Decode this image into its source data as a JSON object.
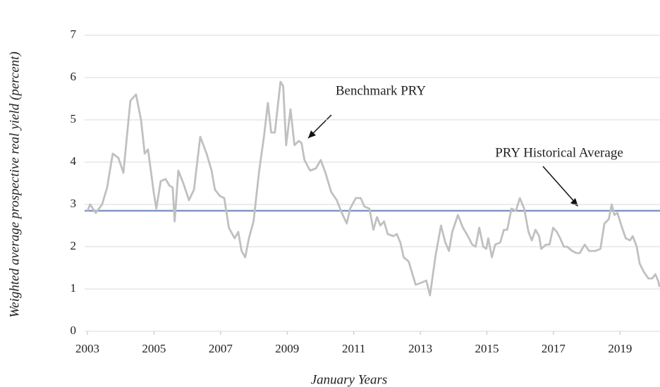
{
  "chart_data": {
    "type": "line",
    "x_label": "January Years",
    "y_label": "Weighted average prospective real yield (percent)",
    "xlim": [
      2003,
      2020.2
    ],
    "xticks": [
      2003,
      2005,
      2007,
      2009,
      2011,
      2013,
      2015,
      2017,
      2019
    ],
    "ylim": [
      0,
      7
    ],
    "yticks": [
      0,
      1,
      2,
      3,
      4,
      5,
      6,
      7
    ],
    "grid": true,
    "x": [
      2003.0,
      2003.08,
      2003.25,
      2003.44,
      2003.59,
      2003.76,
      2003.93,
      2004.08,
      2004.29,
      2004.46,
      2004.61,
      2004.72,
      2004.82,
      2004.99,
      2005.07,
      2005.2,
      2005.35,
      2005.46,
      2005.56,
      2005.62,
      2005.73,
      2005.88,
      2006.05,
      2006.2,
      2006.39,
      2006.58,
      2006.73,
      2006.83,
      2006.98,
      2007.11,
      2007.25,
      2007.42,
      2007.53,
      2007.63,
      2007.74,
      2007.85,
      2007.99,
      2008.16,
      2008.31,
      2008.42,
      2008.52,
      2008.63,
      2008.8,
      2008.88,
      2008.97,
      2009.1,
      2009.22,
      2009.35,
      2009.43,
      2009.52,
      2009.69,
      2009.86,
      2010.01,
      2010.15,
      2010.32,
      2010.49,
      2010.64,
      2010.79,
      2010.89,
      2011.06,
      2011.21,
      2011.32,
      2011.47,
      2011.59,
      2011.7,
      2011.8,
      2011.91,
      2012.02,
      2012.19,
      2012.29,
      2012.4,
      2012.5,
      2012.65,
      2012.86,
      2013.03,
      2013.18,
      2013.29,
      2013.46,
      2013.62,
      2013.75,
      2013.86,
      2013.96,
      2014.13,
      2014.28,
      2014.43,
      2014.56,
      2014.66,
      2014.77,
      2014.89,
      2014.98,
      2015.04,
      2015.15,
      2015.25,
      2015.4,
      2015.51,
      2015.61,
      2015.74,
      2015.87,
      2015.99,
      2016.12,
      2016.25,
      2016.35,
      2016.46,
      2016.57,
      2016.63,
      2016.78,
      2016.88,
      2016.99,
      2017.1,
      2017.2,
      2017.31,
      2017.41,
      2017.56,
      2017.69,
      2017.79,
      2017.94,
      2018.07,
      2018.26,
      2018.41,
      2018.53,
      2018.66,
      2018.75,
      2018.83,
      2018.92,
      2019.04,
      2019.17,
      2019.3,
      2019.38,
      2019.5,
      2019.59,
      2019.72,
      2019.85,
      2019.97,
      2020.06,
      2020.14,
      2020.19
    ],
    "series": [
      {
        "name": "Benchmark PRY",
        "color": "#c0c0c0",
        "values": [
          2.85,
          3.0,
          2.8,
          3.0,
          3.4,
          4.2,
          4.1,
          3.75,
          5.45,
          5.6,
          5.0,
          4.2,
          4.3,
          3.3,
          2.9,
          3.55,
          3.6,
          3.45,
          3.4,
          2.6,
          3.8,
          3.5,
          3.1,
          3.35,
          4.6,
          4.2,
          3.8,
          3.35,
          3.2,
          3.15,
          2.45,
          2.2,
          2.35,
          1.9,
          1.75,
          2.2,
          2.6,
          3.8,
          4.65,
          5.4,
          4.7,
          4.7,
          5.9,
          5.8,
          4.4,
          5.25,
          4.4,
          4.5,
          4.45,
          4.05,
          3.8,
          3.85,
          4.05,
          3.75,
          3.3,
          3.1,
          2.8,
          2.55,
          2.9,
          3.15,
          3.15,
          2.95,
          2.9,
          2.4,
          2.7,
          2.5,
          2.6,
          2.3,
          2.25,
          2.3,
          2.1,
          1.75,
          1.65,
          1.1,
          1.15,
          1.2,
          0.85,
          1.8,
          2.5,
          2.1,
          1.9,
          2.35,
          2.75,
          2.45,
          2.25,
          2.05,
          2.0,
          2.45,
          2.0,
          1.95,
          2.2,
          1.75,
          2.05,
          2.1,
          2.4,
          2.4,
          2.9,
          2.85,
          3.15,
          2.9,
          2.35,
          2.15,
          2.4,
          2.25,
          1.95,
          2.05,
          2.05,
          2.45,
          2.35,
          2.2,
          2.0,
          2.0,
          1.9,
          1.85,
          1.85,
          2.05,
          1.9,
          1.9,
          1.95,
          2.55,
          2.65,
          3.0,
          2.75,
          2.8,
          2.5,
          2.2,
          2.15,
          2.25,
          2.0,
          1.6,
          1.4,
          1.25,
          1.25,
          1.35,
          1.2,
          1.05
        ]
      }
    ],
    "reference_line": {
      "name": "PRY Historical Average",
      "value": 2.85,
      "color": "#7f97c5"
    }
  }
}
